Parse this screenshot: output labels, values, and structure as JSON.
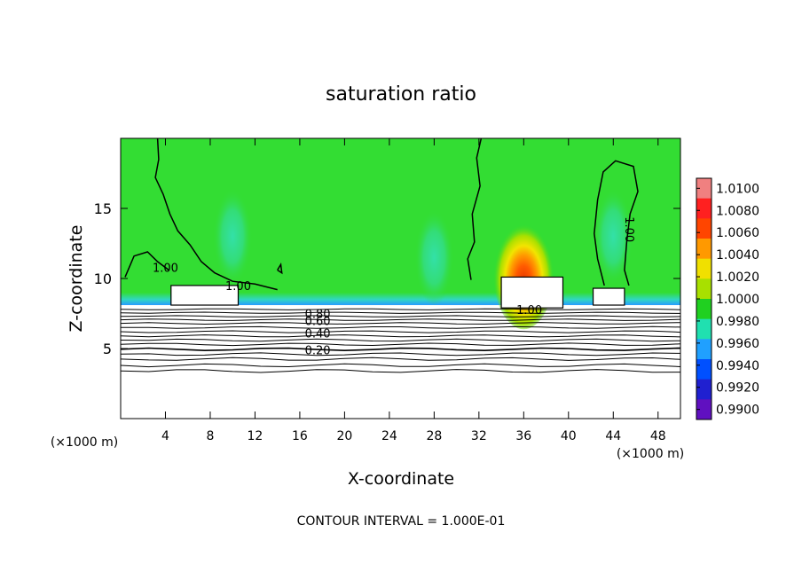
{
  "chart_data": {
    "type": "heatmap",
    "title": "saturation ratio",
    "xlabel": "X-coordinate",
    "ylabel": "Z-coordinate",
    "x_unit": "(×1000 m)",
    "y_unit": "(×1000 m)",
    "footer": "CONTOUR INTERVAL = 1.000E-01",
    "xlim": [
      0,
      50
    ],
    "ylim": [
      0,
      20
    ],
    "x_ticks": [
      4,
      8,
      12,
      16,
      20,
      24,
      28,
      32,
      36,
      40,
      44,
      48
    ],
    "y_ticks": [
      5,
      10,
      15
    ],
    "colorbar": {
      "levels": [
        "1.0100",
        "1.0080",
        "1.0060",
        "1.0040",
        "1.0020",
        "1.0000",
        "0.9980",
        "0.9960",
        "0.9940",
        "0.9920",
        "0.9900"
      ],
      "colors": [
        "#f08080",
        "#ff2020",
        "#ff4500",
        "#ff9900",
        "#f0e000",
        "#a8e000",
        "#20d020",
        "#20e0b0",
        "#20a0ff",
        "#0050ff",
        "#2020d0",
        "#6010c0"
      ]
    },
    "background_color": "#33dd33",
    "contour_labels": [
      {
        "x": 4,
        "z": 10.8,
        "text": "1.00"
      },
      {
        "x": 10.5,
        "z": 9.5,
        "text": "1.00"
      },
      {
        "x": 36.5,
        "z": 7.8,
        "text": "1.00"
      },
      {
        "x": 45.5,
        "z": 13.5,
        "text": "1.00",
        "rotate": true
      },
      {
        "x": 17.6,
        "z": 7.5,
        "text": "0.80"
      },
      {
        "x": 17.6,
        "z": 7.0,
        "text": "0.60"
      },
      {
        "x": 17.6,
        "z": 6.1,
        "text": "0.40"
      },
      {
        "x": 17.6,
        "z": 4.9,
        "text": "0.20"
      }
    ],
    "stable_layer_contours": [
      7.8,
      7.55,
      7.3,
      7.05,
      6.8,
      6.5,
      6.2,
      5.9,
      5.6,
      5.3,
      4.95,
      4.6,
      4.25,
      3.8,
      3.4
    ],
    "hotspots": [
      {
        "x": 36,
        "z": 10.3,
        "value": 1.007
      },
      {
        "x": 10,
        "z": 13.0,
        "value": 0.9975
      },
      {
        "x": 28,
        "z": 11.5,
        "value": 0.9975
      },
      {
        "x": 44,
        "z": 13.0,
        "value": 0.9975
      }
    ]
  }
}
